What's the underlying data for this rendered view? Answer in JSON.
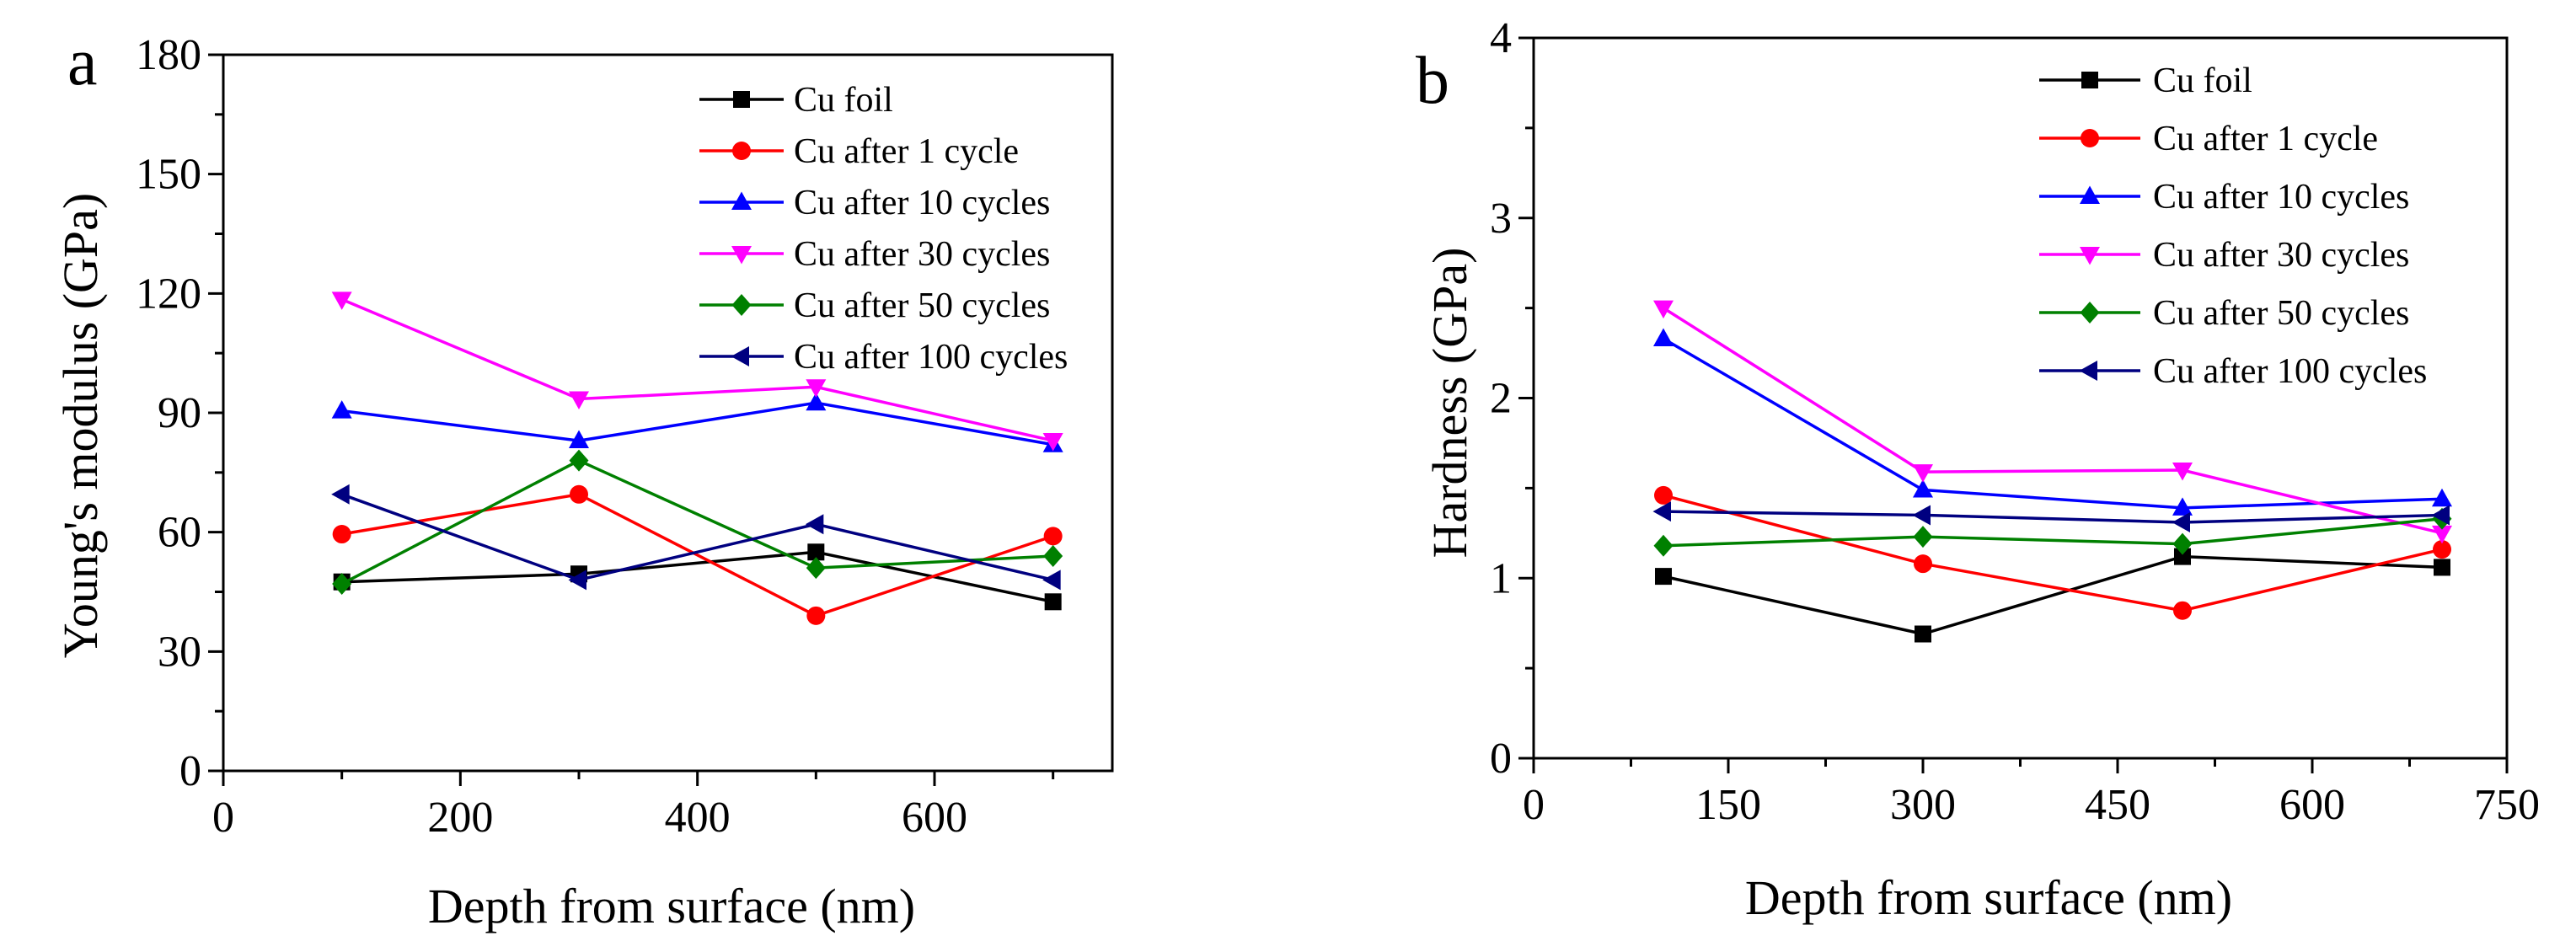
{
  "chart_data": [
    {
      "type": "line",
      "panel_label": "a",
      "xlabel": "Depth from surface (nm)",
      "ylabel": "Young's modulus (GPa)",
      "xlim": [
        0,
        750
      ],
      "ylim": [
        0,
        180
      ],
      "xticks": [
        0,
        200,
        400,
        600
      ],
      "xtick_labels": [
        "0",
        "200",
        "400",
        "600"
      ],
      "yticks": [
        0,
        30,
        60,
        90,
        120,
        150,
        180
      ],
      "ytick_labels": [
        "0",
        "30",
        "60",
        "90",
        "120",
        "150",
        "180"
      ],
      "grid": false,
      "legend_position": "top-right",
      "x": [
        100,
        300,
        500,
        700
      ],
      "series": [
        {
          "name": "Cu foil",
          "color": "#000000",
          "marker": "square",
          "values": [
            47.5,
            49.5,
            55,
            42.5
          ]
        },
        {
          "name": "Cu after 1 cycle",
          "color": "#ff0000",
          "marker": "circle",
          "values": [
            59.5,
            69.5,
            39,
            59
          ]
        },
        {
          "name": "Cu after 10 cycles",
          "color": "#0000ff",
          "marker": "triangle-up",
          "values": [
            90.5,
            83,
            92.5,
            82
          ]
        },
        {
          "name": "Cu after 30 cycles",
          "color": "#ff00ff",
          "marker": "triangle-down",
          "values": [
            118.5,
            93.5,
            96.5,
            83
          ]
        },
        {
          "name": "Cu after 50 cycles",
          "color": "#008000",
          "marker": "diamond",
          "values": [
            47,
            78,
            51,
            54
          ]
        },
        {
          "name": "Cu after 100 cycles",
          "color": "#000080",
          "marker": "triangle-left",
          "values": [
            69.5,
            48,
            62,
            48
          ]
        }
      ]
    },
    {
      "type": "line",
      "panel_label": "b",
      "xlabel": "Depth from surface (nm)",
      "ylabel": "Hardness (GPa)",
      "xlim": [
        0,
        750
      ],
      "ylim": [
        0,
        4
      ],
      "xticks": [
        0,
        150,
        300,
        450,
        600,
        750
      ],
      "xtick_labels": [
        "0",
        "150",
        "300",
        "450",
        "600",
        "750"
      ],
      "yticks": [
        0,
        1,
        2,
        3,
        4
      ],
      "ytick_labels": [
        "0",
        "1",
        "2",
        "3",
        "4"
      ],
      "grid": false,
      "legend_position": "top-right",
      "x": [
        100,
        300,
        500,
        700
      ],
      "series": [
        {
          "name": "Cu foil",
          "color": "#000000",
          "marker": "square",
          "values": [
            1.01,
            0.69,
            1.12,
            1.06
          ]
        },
        {
          "name": "Cu after 1 cycle",
          "color": "#ff0000",
          "marker": "circle",
          "values": [
            1.46,
            1.08,
            0.82,
            1.16
          ]
        },
        {
          "name": "Cu after 10 cycles",
          "color": "#0000ff",
          "marker": "triangle-up",
          "values": [
            2.33,
            1.49,
            1.39,
            1.44
          ]
        },
        {
          "name": "Cu after 30 cycles",
          "color": "#ff00ff",
          "marker": "triangle-down",
          "values": [
            2.5,
            1.59,
            1.6,
            1.25
          ]
        },
        {
          "name": "Cu after 50 cycles",
          "color": "#008000",
          "marker": "diamond",
          "values": [
            1.18,
            1.23,
            1.19,
            1.33
          ]
        },
        {
          "name": "Cu after 100 cycles",
          "color": "#000080",
          "marker": "triangle-left",
          "values": [
            1.37,
            1.35,
            1.31,
            1.35
          ]
        }
      ]
    }
  ]
}
